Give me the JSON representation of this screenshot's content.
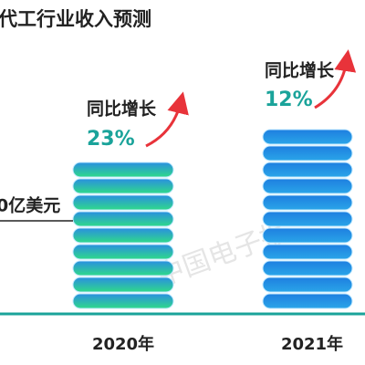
{
  "title": "代工行业收入预测",
  "left_label": "0亿美元",
  "columns": [
    {
      "year": "2020年",
      "growth_label": "同比增长",
      "growth": "23%"
    },
    {
      "year": "2021年",
      "growth_label": "同比增长",
      "growth": "12%"
    }
  ],
  "watermark": "中国电子报"
}
